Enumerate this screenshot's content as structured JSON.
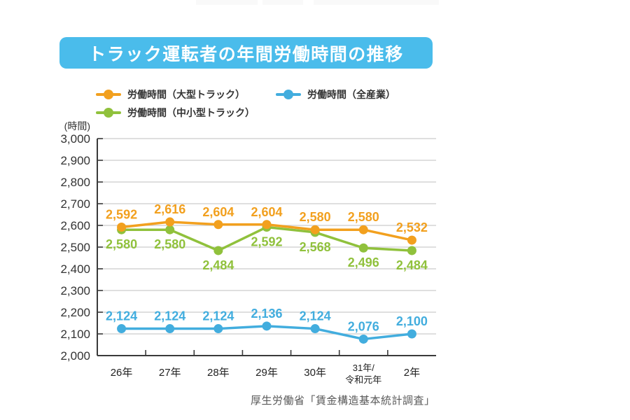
{
  "title": "トラック運転者の年間労働時間の推移",
  "y_axis_unit": "(時間)",
  "source": "厚生労働省「賃金構造基本統計調査」",
  "colors": {
    "title_bg": "#4ABCEB",
    "title_text": "#FFFFFF",
    "axis": "#3a3a3a",
    "grid": "#cccccc",
    "tick_label": "#333333",
    "x_label": "#222222",
    "source_text": "#595959"
  },
  "chart_data": {
    "type": "line",
    "categories": [
      "26年",
      "27年",
      "28年",
      "29年",
      "30年",
      "31年/令和元年",
      "2年"
    ],
    "series": [
      {
        "name": "労働時間（大型トラック）",
        "color": "#F2A01E",
        "values": [
          2592,
          2616,
          2604,
          2604,
          2580,
          2580,
          2532
        ],
        "label_position": "above"
      },
      {
        "name": "労働時間（全産業）",
        "color": "#42ADDE",
        "values": [
          2124,
          2124,
          2124,
          2136,
          2124,
          2076,
          2100
        ],
        "label_position": "above"
      },
      {
        "name": "労働時間（中小型トラック）",
        "color": "#90C13C",
        "values": [
          2580,
          2580,
          2484,
          2592,
          2568,
          2496,
          2484
        ],
        "label_position": "below"
      }
    ],
    "ylim": [
      2000,
      3000
    ],
    "y_tick_step": 100,
    "grid": true,
    "legend_position": "top"
  }
}
